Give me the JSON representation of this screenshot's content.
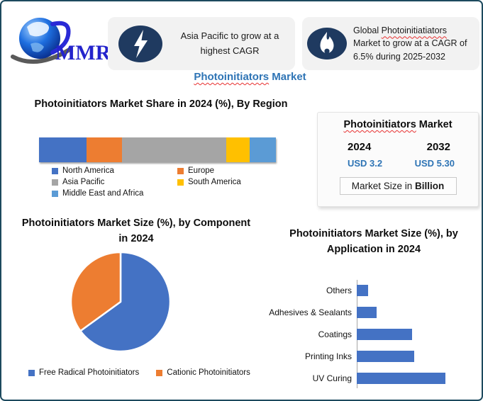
{
  "header": {
    "logo_text": "MMR",
    "callouts": [
      {
        "icon": "lightning-icon",
        "text": "Asia Pacific to grow at a highest CAGR"
      },
      {
        "icon": "flame-icon",
        "prefix": "Global ",
        "underlined": "Photoinitiatiators",
        "suffix": " Market to grow at a CAGR of 6.5% during 2025-2032"
      }
    ]
  },
  "page_title": {
    "underlined": "Photoinitiators",
    "rest": " Market"
  },
  "info_box": {
    "title_underlined": "Photoinitiators",
    "title_rest": " Market",
    "year_start": "2024",
    "year_end": "2032",
    "value_start": "USD 3.2",
    "value_end": "USD 5.30",
    "caption_prefix": "Market Size in ",
    "caption_bold": "Billion"
  },
  "colors": {
    "accent_blue": "#2E74B5",
    "frame_border": "#1D4A5E",
    "icon_navy": "#1F3A60",
    "callout_bg": "#F2F2F2",
    "squiggle_red": "#E83030"
  },
  "chart_data": [
    {
      "type": "bar",
      "subtype": "stacked-horizontal",
      "title": "Photoinitiators Market Share in 2024 (%), By Region",
      "series": [
        {
          "name": "North America",
          "value": 20,
          "color": "#4472C4"
        },
        {
          "name": "Europe",
          "value": 15,
          "color": "#ED7D31"
        },
        {
          "name": "Asia Pacific",
          "value": 44,
          "color": "#A5A5A5"
        },
        {
          "name": "South America",
          "value": 10,
          "color": "#FFC000"
        },
        {
          "name": "Middle East and Africa",
          "value": 11,
          "color": "#5B9BD5"
        }
      ],
      "xlim": [
        0,
        100
      ],
      "legend_position": "bottom"
    },
    {
      "type": "pie",
      "title": "Photoinitiators Market Size (%), by Component in 2024",
      "labels": [
        "Free Radical Photoinitiators",
        "Cationic Photoinitiators"
      ],
      "values": [
        65,
        35
      ],
      "colors": [
        "#4472C4",
        "#ED7D31"
      ],
      "start_angle_deg": 0,
      "direction": "clockwise",
      "legend_position": "bottom"
    },
    {
      "type": "bar",
      "subtype": "horizontal",
      "title": "Photoinitiators Market Size (%), by Application in 2024",
      "categories": [
        "Others",
        "Adhesives & Sealants",
        "Coatings",
        "Printing Inks",
        "UV Curing"
      ],
      "values": [
        5,
        9,
        25,
        26,
        40
      ],
      "color": "#4472C4",
      "xlim": [
        0,
        43
      ],
      "grid": false
    }
  ]
}
